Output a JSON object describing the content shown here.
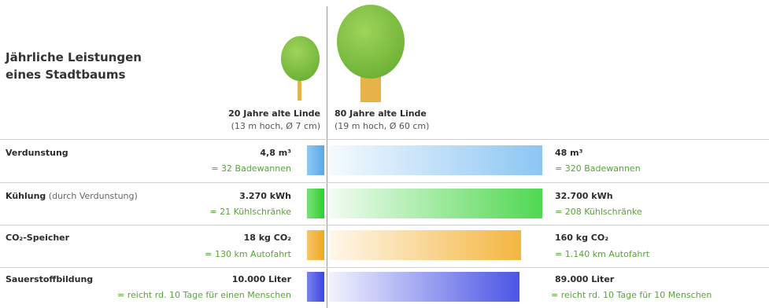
{
  "title_line1": "Jährliche Leistungen",
  "title_line2": "eines Stadtbaums",
  "trees": [
    {
      "name": "20 Jahre alte Linde",
      "dims": "(13 m hoch, Ø 7 cm)"
    },
    {
      "name": "80 Jahre alte Linde",
      "dims": "(19 m hoch, Ø 60 cm)"
    }
  ],
  "rows": [
    {
      "label": "Verdunstung",
      "label_note": "",
      "left_value": "4,8 m³",
      "left_equiv": "= 32 Badewannen",
      "right_value": "48 m³",
      "right_equiv": "= 320 Badewannen",
      "color": "#5aa7e8"
    },
    {
      "label": "Kühlung",
      "label_note": " (durch Verdunstung)",
      "left_value": "3.270 kWh",
      "left_equiv": "= 21 Kühlschränke",
      "right_value": "32.700 kWh",
      "right_equiv": "= 208 Kühlschränke",
      "color": "#3ad23a"
    },
    {
      "label": "CO₂-Speicher",
      "label_note": "",
      "left_value": "18 kg CO₂",
      "left_equiv": "= 130 km Autofahrt",
      "right_value": "160 kg CO₂",
      "right_equiv": "= 1.140 km Autofahrt",
      "color": "#f0a820"
    },
    {
      "label": "Sauerstoffbildung",
      "label_note": "",
      "left_value": "10.000 Liter",
      "left_equiv": "= reicht rd. 10 Tage für einen Menschen",
      "right_value": "89.000 Liter",
      "right_equiv": "= reicht rd. 10 Tage für 10 Menschen",
      "color": "#3a46e0"
    }
  ],
  "chart_data": {
    "type": "bar",
    "categories": [
      "Verdunstung",
      "Kühlung",
      "CO₂-Speicher",
      "Sauerstoffbildung"
    ],
    "series": [
      {
        "name": "20 Jahre alte Linde",
        "values": [
          4.8,
          3270,
          18,
          10000
        ]
      },
      {
        "name": "80 Jahre alte Linde",
        "values": [
          48,
          32700,
          160,
          89000
        ]
      }
    ],
    "units": [
      "m³",
      "kWh",
      "kg CO₂",
      "Liter"
    ],
    "title": "Jährliche Leistungen eines Stadtbaums"
  }
}
